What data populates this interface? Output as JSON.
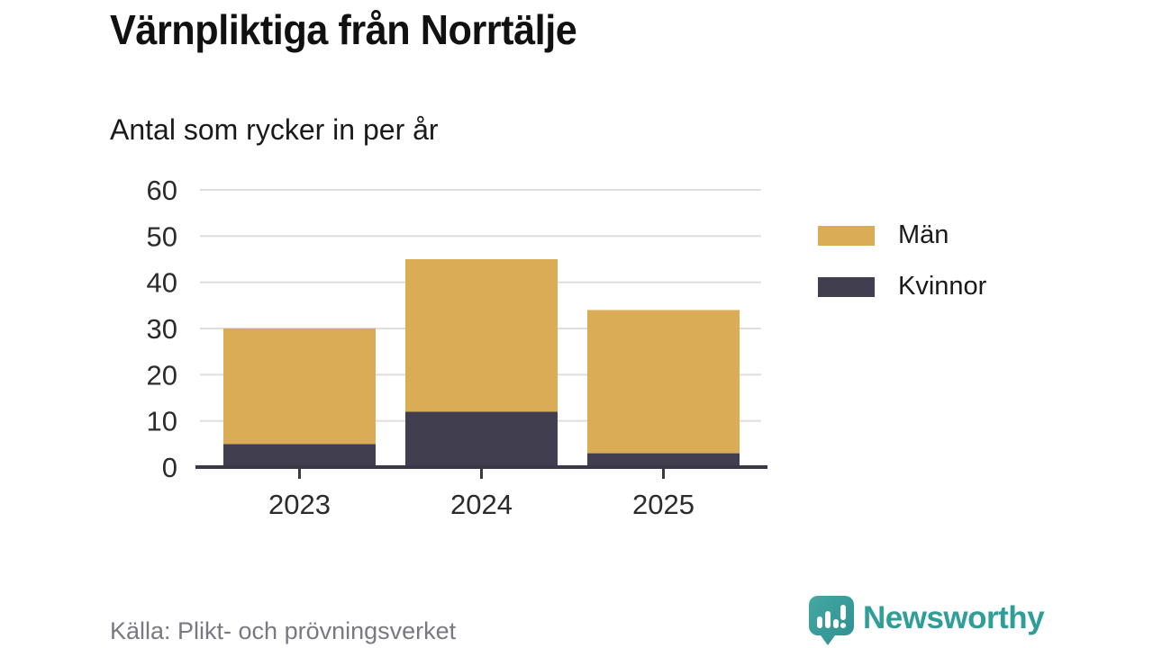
{
  "header": {
    "title": "Värnpliktiga från Norrtälje",
    "subtitle": "Antal som rycker in per år"
  },
  "chart_data": {
    "type": "bar",
    "stacked": true,
    "title": "Värnpliktiga från Norrtälje",
    "subtitle": "Antal som rycker in per år",
    "categories": [
      "2023",
      "2024",
      "2025"
    ],
    "series": [
      {
        "name": "Män",
        "values": [
          25,
          33,
          31
        ],
        "color": "#D9AC55"
      },
      {
        "name": "Kvinnor",
        "values": [
          5,
          12,
          3
        ],
        "color": "#403E4F"
      }
    ],
    "totals": [
      30,
      45,
      34
    ],
    "xlabel": "",
    "ylabel": "",
    "ylim": [
      0,
      60
    ],
    "yticks": [
      0,
      10,
      20,
      30,
      40,
      50,
      60
    ],
    "grid": true,
    "legend_position": "right"
  },
  "style_colors": {
    "men": "#D9AC55",
    "women": "#403E4F",
    "axis": "#39384A",
    "gridline": "#DEDEDE",
    "tick_text": "#2B2B2B",
    "muted_text": "#7A7982",
    "brand_teal": "#2F9E99"
  },
  "footer": {
    "source": "Källa: Plikt- och prövningsverket",
    "brand": "Newsworthy"
  }
}
